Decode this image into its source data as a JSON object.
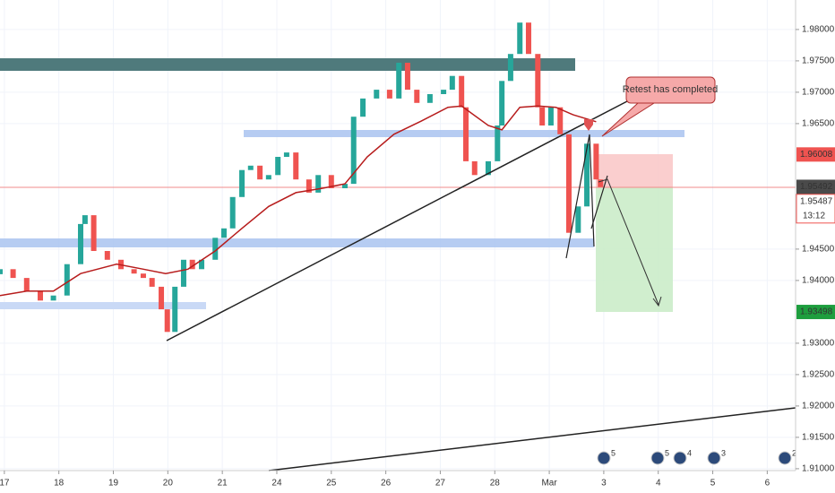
{
  "chart_data": {
    "type": "candlestick",
    "x": [
      -0.08,
      0.16,
      0.41,
      0.66,
      0.9,
      1.15,
      1.4,
      1.48,
      1.64,
      1.89,
      2.14,
      2.38,
      2.55,
      2.71,
      2.88,
      2.99,
      3.13,
      3.29,
      3.45,
      3.62,
      3.87,
      4.03,
      4.19,
      4.36,
      4.52,
      4.69,
      4.85,
      5.02,
      5.18,
      5.35,
      5.59,
      5.76,
      6.0,
      6.25,
      6.41,
      6.58,
      6.83,
      7.07,
      7.24,
      7.4,
      7.57,
      7.81,
      8.06,
      8.22,
      8.39,
      8.47,
      8.63,
      8.88,
      9.05,
      9.13,
      9.29,
      9.46,
      9.62,
      9.79,
      9.87,
      10.03,
      10.2,
      10.36,
      10.53,
      10.69,
      10.86,
      10.94
    ],
    "open": [
      1.941,
      1.9418,
      1.9404,
      1.9383,
      1.9368,
      1.9376,
      1.9426,
      1.949,
      1.9504,
      1.9447,
      1.9433,
      1.9418,
      1.9411,
      1.9404,
      1.939,
      1.9354,
      1.9318,
      1.939,
      1.9433,
      1.9418,
      1.9433,
      1.9468,
      1.9483,
      1.9533,
      1.9576,
      1.9583,
      1.9561,
      1.9568,
      1.9597,
      1.9604,
      1.9561,
      1.954,
      1.9568,
      1.9547,
      1.9554,
      1.9661,
      1.969,
      1.9704,
      1.969,
      1.9747,
      1.9704,
      1.9683,
      1.9697,
      1.9704,
      1.9726,
      1.9676,
      1.959,
      1.9568,
      1.959,
      1.9647,
      1.9718,
      1.9761,
      1.9811,
      1.9761,
      1.9676,
      1.9647,
      1.9676,
      1.9633,
      1.9476,
      1.9518,
      1.9618,
      1.9561
    ],
    "close": [
      1.9418,
      1.9404,
      1.9383,
      1.9368,
      1.9376,
      1.9426,
      1.949,
      1.9504,
      1.9447,
      1.9433,
      1.9418,
      1.9411,
      1.9404,
      1.939,
      1.9354,
      1.9318,
      1.939,
      1.9433,
      1.9418,
      1.9433,
      1.9468,
      1.9483,
      1.9533,
      1.9576,
      1.9583,
      1.9561,
      1.9568,
      1.9597,
      1.9604,
      1.9561,
      1.954,
      1.9568,
      1.9547,
      1.9554,
      1.9661,
      1.969,
      1.9704,
      1.969,
      1.9747,
      1.9704,
      1.9683,
      1.9697,
      1.9704,
      1.9726,
      1.9676,
      1.959,
      1.9568,
      1.959,
      1.9647,
      1.9718,
      1.9761,
      1.9811,
      1.9761,
      1.9676,
      1.9647,
      1.9676,
      1.9633,
      1.9476,
      1.9518,
      1.9618,
      1.9561,
      1.9549
    ],
    "up_color": "#26a69a",
    "down_color": "#ef5350",
    "moving_average": {
      "color": "#b71c1c",
      "x": [
        -0.08,
        0.41,
        0.9,
        1.4,
        2.06,
        2.55,
        2.96,
        3.37,
        3.87,
        4.36,
        4.85,
        5.35,
        5.84,
        6.25,
        6.66,
        7.15,
        7.65,
        8.14,
        8.39,
        8.88,
        9.13,
        9.46,
        9.79,
        10.12,
        10.44,
        10.86
      ],
      "values": [
        1.9376,
        1.9383,
        1.9383,
        1.9411,
        1.9426,
        1.9418,
        1.9411,
        1.9418,
        1.9447,
        1.9483,
        1.9518,
        1.954,
        1.9547,
        1.9554,
        1.9597,
        1.9633,
        1.9654,
        1.9676,
        1.9678,
        1.9647,
        1.964,
        1.9676,
        1.9678,
        1.9676,
        1.9664,
        1.9653
      ]
    },
    "xlim": [
      -0.08,
      14.52
    ],
    "xticks": [
      {
        "value": 0,
        "label": "17"
      },
      {
        "value": 1,
        "label": "18"
      },
      {
        "value": 2,
        "label": "19"
      },
      {
        "value": 3,
        "label": "20"
      },
      {
        "value": 4,
        "label": "21"
      },
      {
        "value": 5,
        "label": "24"
      },
      {
        "value": 6,
        "label": "25"
      },
      {
        "value": 7,
        "label": "26"
      },
      {
        "value": 8,
        "label": "27"
      },
      {
        "value": 9,
        "label": "28"
      },
      {
        "value": 10,
        "label": "Mar"
      },
      {
        "value": 11,
        "label": "3"
      },
      {
        "value": 12,
        "label": "4"
      },
      {
        "value": 13,
        "label": "5"
      },
      {
        "value": 14,
        "label": "6"
      }
    ],
    "ylim": [
      1.9097,
      1.9847
    ],
    "yticks": [
      {
        "value": 1.98,
        "label": "1.98000"
      },
      {
        "value": 1.975,
        "label": "1.97500"
      },
      {
        "value": 1.97,
        "label": "1.97000"
      },
      {
        "value": 1.965,
        "label": "1.96500"
      },
      {
        "value": 1.945,
        "label": "1.94500"
      },
      {
        "value": 1.94,
        "label": "1.94000"
      },
      {
        "value": 1.93,
        "label": "1.93000"
      },
      {
        "value": 1.925,
        "label": "1.92500"
      },
      {
        "value": 1.92,
        "label": "1.92000"
      },
      {
        "value": 1.915,
        "label": "1.91500"
      },
      {
        "value": 1.91,
        "label": "1.91000"
      }
    ],
    "grid": true,
    "price_tags": [
      {
        "value": 1.96008,
        "label": "1.96008",
        "color": "#ef5350"
      },
      {
        "value": 1.95492,
        "label": "1.95492",
        "color": "#4a4a4a"
      },
      {
        "value": 1.93498,
        "label": "1.93498",
        "color": "#1e9e3e"
      }
    ],
    "bid_tag": {
      "value": 1.95487,
      "label": "1.95487",
      "countdown": "13:12"
    },
    "annotation": "Retest has completed",
    "calendar_events": [
      "5",
      "5",
      "4",
      "3",
      "2"
    ]
  }
}
